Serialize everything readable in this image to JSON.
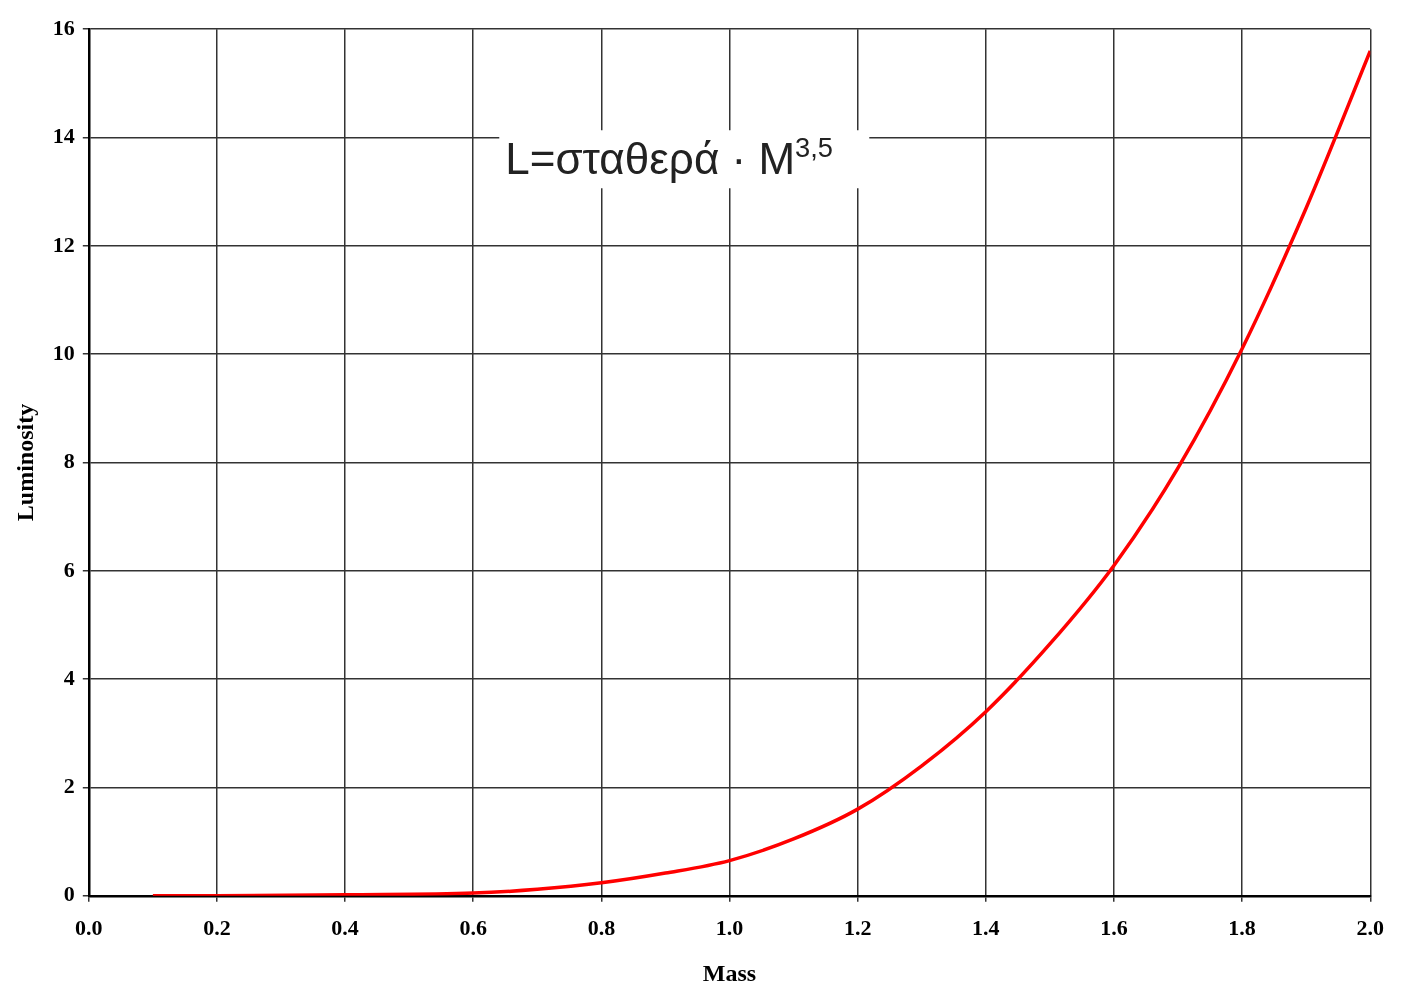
{
  "chart_data": {
    "type": "line",
    "xlabel": "Mass",
    "ylabel": "Luminosity",
    "annotations": [
      "L=σταθερά · M$^{3,5}$"
    ],
    "x": [
      0.1,
      0.2,
      0.4,
      0.6,
      0.7,
      0.8,
      0.9,
      1.0,
      1.1,
      1.2,
      1.3,
      1.4,
      1.5,
      1.6,
      1.7,
      1.8,
      1.9,
      2.0
    ],
    "series": [
      {
        "color": "#ff0000",
        "values": [
          0,
          0,
          0.02,
          0.05,
          0.12,
          0.24,
          0.42,
          0.65,
          1.05,
          1.6,
          2.4,
          3.4,
          4.65,
          6.1,
          7.9,
          10.1,
          12.7,
          15.6
        ]
      }
    ],
    "xlim": [
      0,
      2
    ],
    "xticks": [
      {
        "value": 0,
        "label": "0.0"
      },
      0.2,
      0.4,
      0.6,
      0.8,
      {
        "value": 1,
        "label": "1.0"
      },
      1.2,
      1.4,
      1.6,
      1.8,
      {
        "value": 2,
        "label": "2.0"
      }
    ],
    "ylim": [
      0,
      16
    ],
    "yticks": [
      0,
      2,
      4,
      6,
      8,
      10,
      12,
      14,
      16
    ],
    "grid": true,
    "legend": false,
    "marker": "none",
    "line_style": "solid"
  }
}
